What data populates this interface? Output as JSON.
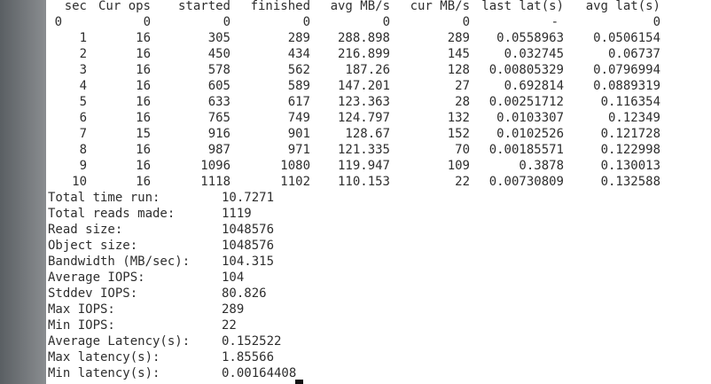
{
  "table": {
    "header": [
      "sec",
      "Cur ops",
      "started",
      "finished",
      "avg MB/s",
      "cur MB/s",
      "last lat(s)",
      "avg lat(s)"
    ],
    "rows": [
      [
        "0",
        "0",
        "0",
        "0",
        "0",
        "0",
        "-",
        "0"
      ],
      [
        "1",
        "16",
        "305",
        "289",
        "288.898",
        "289",
        "0.0558963",
        "0.0506154"
      ],
      [
        "2",
        "16",
        "450",
        "434",
        "216.899",
        "145",
        "0.032745",
        "0.06737"
      ],
      [
        "3",
        "16",
        "578",
        "562",
        "187.26",
        "128",
        "0.00805329",
        "0.0796994"
      ],
      [
        "4",
        "16",
        "605",
        "589",
        "147.201",
        "27",
        "0.692814",
        "0.0889319"
      ],
      [
        "5",
        "16",
        "633",
        "617",
        "123.363",
        "28",
        "0.00251712",
        "0.116354"
      ],
      [
        "6",
        "16",
        "765",
        "749",
        "124.797",
        "132",
        "0.0103307",
        "0.12349"
      ],
      [
        "7",
        "15",
        "916",
        "901",
        "128.67",
        "152",
        "0.0102526",
        "0.121728"
      ],
      [
        "8",
        "16",
        "987",
        "971",
        "121.335",
        "70",
        "0.00185571",
        "0.122998"
      ],
      [
        "9",
        "16",
        "1096",
        "1080",
        "119.947",
        "109",
        "0.3878",
        "0.130013"
      ],
      [
        "10",
        "16",
        "1118",
        "1102",
        "110.153",
        "22",
        "0.00730809",
        "0.132588"
      ]
    ]
  },
  "summary": [
    {
      "label": "Total time run:",
      "value": "10.7271"
    },
    {
      "label": "Total reads made:",
      "value": "1119"
    },
    {
      "label": "Read size:",
      "value": "1048576"
    },
    {
      "label": "Object size:",
      "value": "1048576"
    },
    {
      "label": "Bandwidth (MB/sec):",
      "value": "104.315"
    },
    {
      "label": "Average IOPS:",
      "value": "104"
    },
    {
      "label": "Stddev IOPS:",
      "value": "80.826"
    },
    {
      "label": "Max IOPS:",
      "value": "289"
    },
    {
      "label": "Min IOPS:",
      "value": "22"
    },
    {
      "label": "Average Latency(s):",
      "value": "0.152522"
    },
    {
      "label": "Max latency(s):",
      "value": "1.85566"
    },
    {
      "label": "Min latency(s):",
      "value": "0.00164408"
    }
  ]
}
